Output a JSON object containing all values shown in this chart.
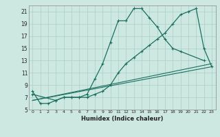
{
  "xlabel": "Humidex (Indice chaleur)",
  "bg_color": "#cce8e0",
  "line_color": "#1a6e60",
  "grid_color": "#aacfc8",
  "xlim": [
    -0.5,
    23.5
  ],
  "ylim": [
    5,
    22
  ],
  "xticks": [
    0,
    1,
    2,
    3,
    4,
    5,
    6,
    7,
    8,
    9,
    10,
    11,
    12,
    13,
    14,
    15,
    16,
    17,
    18,
    19,
    20,
    21,
    22,
    23
  ],
  "yticks": [
    5,
    7,
    9,
    11,
    13,
    15,
    17,
    19,
    21
  ],
  "curve1_x": [
    0,
    1,
    2,
    3,
    4,
    5,
    6,
    7,
    8,
    9,
    10,
    11,
    12,
    13,
    14,
    15,
    16,
    17,
    18,
    19,
    22
  ],
  "curve1_y": [
    8.0,
    6.0,
    6.0,
    6.5,
    7.0,
    7.0,
    7.0,
    7.5,
    10.0,
    12.5,
    16.0,
    19.5,
    19.5,
    21.5,
    21.5,
    20.0,
    18.5,
    16.5,
    15.0,
    14.5,
    13.0
  ],
  "curve2_x": [
    0,
    3,
    4,
    5,
    6,
    7,
    8,
    9,
    10,
    11,
    12,
    13,
    14,
    15,
    16,
    17,
    18,
    19,
    20,
    21,
    22,
    23
  ],
  "curve2_y": [
    7.5,
    6.5,
    7.0,
    7.0,
    7.0,
    7.0,
    7.5,
    8.0,
    9.0,
    11.0,
    12.5,
    13.5,
    14.5,
    15.5,
    16.5,
    17.5,
    19.0,
    20.5,
    21.0,
    21.5,
    15.0,
    12.0
  ],
  "line3_x": [
    0,
    23
  ],
  "line3_y": [
    6.5,
    12.0
  ],
  "line4_x": [
    0,
    23
  ],
  "line4_y": [
    6.5,
    12.5
  ]
}
